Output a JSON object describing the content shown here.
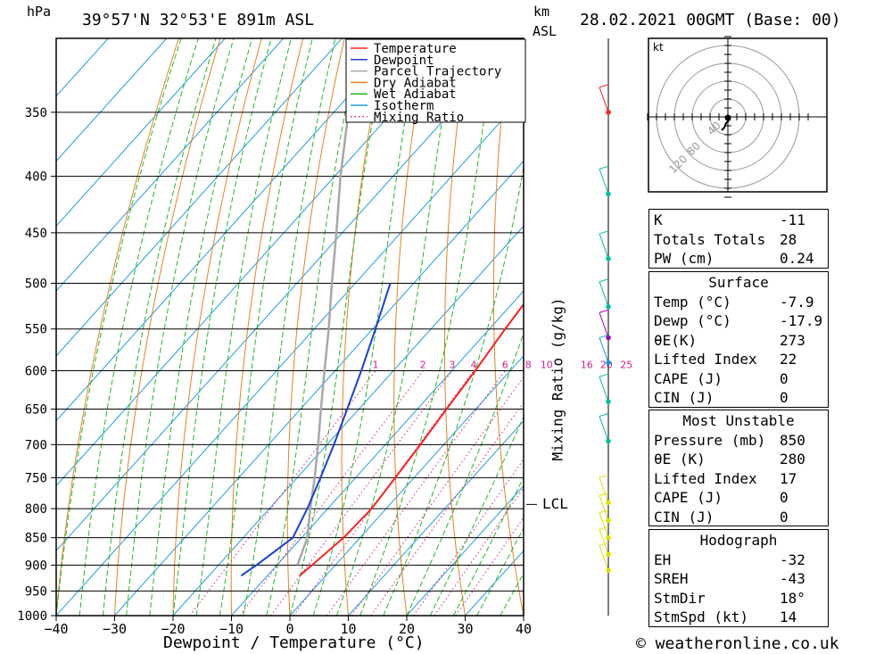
{
  "header": {
    "hpa_label": "hPa",
    "location": "39°57'N  32°53'E  891m  ASL",
    "km_label": "km",
    "asl_label": "ASL",
    "datetime": "28.02.2021  00GMT  (Base: 00)"
  },
  "footer": {
    "credit": "© weatheronline.co.uk"
  },
  "chart_data": {
    "type": "line",
    "xlabel": "Dewpoint / Temperature (°C)",
    "ylabel_right": "Mixing Ratio (g/kg)",
    "x_ticks": [
      -40,
      -30,
      -20,
      -10,
      0,
      10,
      20,
      30,
      40
    ],
    "xlim": [
      -40,
      40
    ],
    "ylim_hpa": [
      1000,
      300
    ],
    "y_ticks": [
      350,
      400,
      450,
      500,
      550,
      600,
      650,
      700,
      750,
      800,
      850,
      900,
      950,
      1000
    ],
    "mixing_ratio_labels": [
      "1",
      "2",
      "3",
      "4",
      "6",
      "8",
      "10",
      "16",
      "20",
      "25"
    ],
    "lcl_label": "LCL",
    "lcl_pressure": 793,
    "legend": [
      "Temperature",
      "Dewpoint",
      "Parcel Trajectory",
      "Dry Adiabat",
      "Wet Adiabat",
      "Isotherm",
      "Mixing Ratio"
    ],
    "colors": {
      "temperature": "#ff2020",
      "dewpoint": "#1a3fd6",
      "parcel": "#a8a8a8",
      "dry_adiabat": "#e8821e",
      "wet_adiabat": "#22b822",
      "isotherm": "#1e9ee0",
      "mixing_ratio": "#d0208a"
    },
    "series": [
      {
        "name": "Temperature",
        "points": [
          [
            920,
            -4.5
          ],
          [
            900,
            -4.0
          ],
          [
            850,
            -2.8
          ],
          [
            800,
            -2.5
          ],
          [
            750,
            -3.2
          ],
          [
            700,
            -4.0
          ],
          [
            650,
            -5.0
          ],
          [
            600,
            -6.0
          ],
          [
            550,
            -7.3
          ],
          [
            500,
            -8.5
          ]
        ]
      },
      {
        "name": "Dewpoint",
        "points": [
          [
            920,
            -14.5
          ],
          [
            900,
            -13.5
          ],
          [
            850,
            -11.5
          ],
          [
            800,
            -13.5
          ],
          [
            750,
            -16.0
          ],
          [
            700,
            -18.8
          ],
          [
            650,
            -22.0
          ],
          [
            600,
            -25.5
          ],
          [
            550,
            -29.5
          ],
          [
            500,
            -34.0
          ]
        ]
      },
      {
        "name": "Parcel Trajectory",
        "points": [
          [
            900,
            -6.5
          ],
          [
            850,
            -9.0
          ],
          [
            800,
            -13.0
          ],
          [
            750,
            -17.0
          ],
          [
            700,
            -21.5
          ],
          [
            650,
            -26.5
          ],
          [
            600,
            -31.8
          ],
          [
            550,
            -37.5
          ],
          [
            500,
            -44.0
          ],
          [
            450,
            -51.0
          ],
          [
            400,
            -59.0
          ],
          [
            350,
            -67.5
          ],
          [
            300,
            -77.0
          ]
        ]
      }
    ],
    "wind_profile": {
      "levels_hpa": [
        350,
        415,
        475,
        525,
        560,
        590,
        640,
        695,
        790,
        820,
        850,
        880,
        910
      ],
      "dot_colors": [
        "#ff2020",
        "#00c0a0",
        "#00c0a0",
        "#00c0a0",
        "#a000c0",
        "#00a0e0",
        "#00c0a0",
        "#00c0a0",
        "#e0e000",
        "#e0e000",
        "#e0e000",
        "#e0e000",
        "#e0e000"
      ]
    },
    "hodograph": {
      "unit": "kt",
      "ring_labels": [
        "120",
        "80",
        "40"
      ]
    }
  },
  "indices": {
    "top": [
      {
        "k": "K",
        "v": "-11"
      },
      {
        "k": "Totals Totals",
        "v": "28"
      },
      {
        "k": "PW (cm)",
        "v": "0.24"
      }
    ],
    "surface": {
      "title": "Surface",
      "rows": [
        {
          "k": "Temp (°C)",
          "v": "-7.9"
        },
        {
          "k": "Dewp (°C)",
          "v": "-17.9"
        },
        {
          "k": "θE(K)",
          "v": "273"
        },
        {
          "k": "Lifted Index",
          "v": "22"
        },
        {
          "k": "CAPE (J)",
          "v": "0"
        },
        {
          "k": "CIN (J)",
          "v": "0"
        }
      ]
    },
    "most_unstable": {
      "title": "Most Unstable",
      "rows": [
        {
          "k": "Pressure (mb)",
          "v": "850"
        },
        {
          "k": "θE (K)",
          "v": "280"
        },
        {
          "k": "Lifted Index",
          "v": "17"
        },
        {
          "k": "CAPE (J)",
          "v": "0"
        },
        {
          "k": "CIN (J)",
          "v": "0"
        }
      ]
    },
    "hodograph": {
      "title": "Hodograph",
      "rows": [
        {
          "k": "EH",
          "v": "-32"
        },
        {
          "k": "SREH",
          "v": "-43"
        },
        {
          "k": "StmDir",
          "v": "18°"
        },
        {
          "k": "StmSpd (kt)",
          "v": "14"
        }
      ]
    }
  }
}
